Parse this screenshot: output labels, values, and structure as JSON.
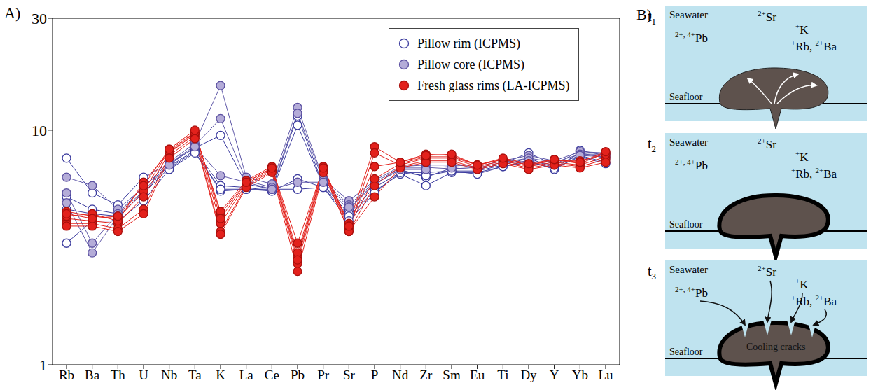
{
  "chart_data": {
    "panel_label": "A)",
    "type": "line",
    "log": "y",
    "legend": "top right",
    "categories": [
      "Rb",
      "Ba",
      "Th",
      "U",
      "Nb",
      "Ta",
      "K",
      "La",
      "Ce",
      "Pb",
      "Pr",
      "Sr",
      "P",
      "Nd",
      "Zr",
      "Sm",
      "Eu",
      "Ti",
      "Dy",
      "Y",
      "Yb",
      "Lu"
    ],
    "ylim": [
      1,
      30
    ],
    "yticks": [
      1,
      10,
      30
    ],
    "series": [
      {
        "name": "Pillow rim (ICPMS)",
        "color": "#3b3b9e",
        "marker": "open circle",
        "values": [
          [
            7.6,
            5.4,
            4.8,
            6.3,
            7.2,
            8.4,
            9.5,
            5.9,
            5.6,
            11.5,
            5.8,
            4.6,
            5.9,
            6.8,
            6.3,
            6.9,
            6.8,
            7.2,
            8.0,
            7.1,
            8.2,
            7.8
          ],
          [
            5.2,
            4.6,
            4.4,
            5.8,
            7.0,
            8.2,
            5.8,
            5.7,
            5.5,
            10.5,
            5.8,
            4.4,
            5.7,
            6.6,
            6.6,
            6.7,
            6.7,
            7.1,
            7.6,
            6.9,
            8.0,
            7.6
          ],
          [
            4.6,
            4.4,
            4.3,
            5.4,
            6.9,
            8.1,
            5.5,
            5.6,
            5.5,
            6.2,
            5.7,
            4.3,
            5.5,
            6.5,
            5.8,
            6.6,
            6.6,
            7.0,
            7.4,
            6.8,
            7.8,
            7.3
          ],
          [
            3.3,
            4.1,
            4.1,
            5.0,
            6.8,
            8.0,
            5.6,
            5.6,
            5.6,
            5.6,
            5.7,
            4.1,
            5.4,
            6.6,
            6.4,
            6.7,
            6.5,
            7.0,
            7.3,
            6.9,
            7.7,
            7.2
          ]
        ]
      },
      {
        "name": "Pillow core (ICPMS)",
        "color": "#b4acd8",
        "marker": "filled circle",
        "values": [
          [
            6.3,
            5.8,
            4.6,
            5.7,
            7.3,
            8.8,
            15.5,
            6.3,
            5.9,
            12.5,
            6.2,
            5.0,
            6.1,
            7.0,
            7.1,
            7.1,
            7.0,
            7.4,
            7.8,
            7.4,
            8.1,
            8.0
          ],
          [
            5.4,
            3.3,
            4.4,
            5.5,
            7.2,
            8.6,
            11.2,
            6.1,
            5.7,
            11.8,
            6.1,
            4.8,
            6.0,
            6.9,
            6.9,
            7.0,
            6.9,
            7.3,
            7.6,
            7.3,
            7.9,
            7.9
          ],
          [
            4.9,
            3.0,
            4.3,
            5.4,
            7.1,
            8.5,
            6.4,
            6.0,
            5.6,
            6.0,
            6.0,
            4.7,
            5.9,
            6.8,
            6.8,
            6.9,
            6.8,
            7.2,
            7.4,
            7.1,
            7.8,
            7.7
          ]
        ]
      },
      {
        "name": "Fresh glass rims (LA-ICPMS)",
        "color": "#e3211c",
        "marker": "filled circle",
        "values": [
          [
            4.5,
            4.3,
            4.2,
            5.5,
            8.2,
            9.8,
            4.4,
            6.0,
            6.9,
            3.3,
            6.9,
            4.0,
            8.5,
            7.3,
            7.9,
            7.8,
            7.1,
            7.5,
            7.1,
            7.5,
            7.2,
            8.0
          ],
          [
            4.2,
            4.1,
            4.0,
            5.2,
            8.0,
            9.6,
            4.0,
            5.9,
            6.8,
            2.9,
            6.8,
            3.8,
            8.0,
            7.1,
            7.6,
            7.6,
            7.0,
            7.4,
            7.0,
            7.3,
            7.1,
            7.7
          ],
          [
            4.0,
            4.0,
            3.8,
            4.6,
            7.8,
            9.4,
            3.7,
            5.8,
            6.7,
            2.7,
            6.7,
            3.7,
            5.8,
            7.0,
            7.4,
            7.4,
            6.9,
            7.3,
            6.9,
            7.2,
            7.0,
            7.5
          ],
          [
            4.3,
            4.4,
            4.1,
            6.0,
            8.1,
            9.7,
            4.5,
            6.1,
            7.0,
            3.0,
            7.0,
            3.9,
            6.2,
            7.2,
            7.7,
            7.7,
            7.1,
            7.5,
            7.1,
            7.4,
            7.4,
            7.9
          ],
          [
            3.9,
            3.9,
            3.7,
            4.4,
            7.6,
            9.2,
            3.6,
            5.7,
            6.6,
            2.5,
            6.6,
            3.7,
            5.2,
            6.9,
            7.3,
            7.3,
            6.8,
            7.2,
            6.8,
            7.1,
            6.9,
            7.3
          ],
          [
            4.4,
            4.2,
            4.3,
            5.8,
            8.3,
            10.0,
            4.2,
            6.0,
            6.9,
            2.8,
            6.9,
            3.9,
            7.0,
            7.3,
            7.8,
            7.9,
            7.1,
            7.6,
            7.2,
            7.5,
            7.3,
            8.1
          ]
        ]
      }
    ]
  },
  "diagram": {
    "panel_label": "B)",
    "panels": [
      {
        "time": {
          "text": "t",
          "sub": "1"
        },
        "water_label": "Seawater",
        "floor_label": "Seafloor",
        "ions": [
          [
            {
              "sup": "2+, 4+"
            },
            {
              "text": "Pb"
            }
          ],
          [
            {
              "sup": "2+"
            },
            {
              "text": "Sr"
            }
          ],
          [
            {
              "sup": "+"
            },
            {
              "text": "K"
            }
          ],
          [
            {
              "sup": "+"
            },
            {
              "text": "Rb, "
            },
            {
              "sup": "2+"
            },
            {
              "text": "Ba"
            }
          ]
        ]
      },
      {
        "time": {
          "text": "t",
          "sub": "2"
        },
        "water_label": "Seawater",
        "floor_label": "Seafloor",
        "ions": [
          [
            {
              "sup": "2+, 4+"
            },
            {
              "text": "Pb"
            }
          ],
          [
            {
              "sup": "2+"
            },
            {
              "text": "Sr"
            }
          ],
          [
            {
              "sup": "+"
            },
            {
              "text": "K"
            }
          ],
          [
            {
              "sup": "+"
            },
            {
              "text": "Rb, "
            },
            {
              "sup": "2+"
            },
            {
              "text": "Ba"
            }
          ]
        ]
      },
      {
        "time": {
          "text": "t",
          "sub": "3"
        },
        "water_label": "Seawater",
        "floor_label": "Seafloor",
        "cracks_label": "Cooling cracks",
        "ions": [
          [
            {
              "sup": "2+, 4+"
            },
            {
              "text": "Pb"
            }
          ],
          [
            {
              "sup": "2+"
            },
            {
              "text": "Sr"
            }
          ],
          [
            {
              "sup": "+"
            },
            {
              "text": "K"
            }
          ],
          [
            {
              "sup": "+"
            },
            {
              "text": "Rb, "
            },
            {
              "sup": "2+"
            },
            {
              "text": "Ba"
            }
          ]
        ]
      }
    ]
  }
}
